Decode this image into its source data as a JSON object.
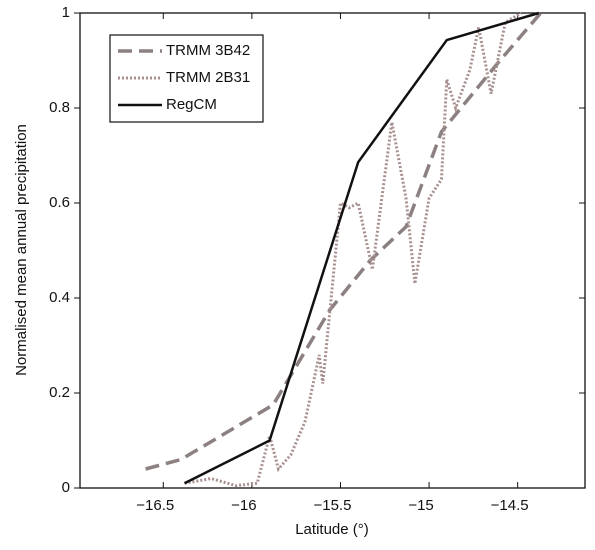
{
  "chart_data": {
    "type": "line",
    "x_label": "Latitude (°)",
    "y_label": "Normalised mean annual precipitation",
    "xlim": [
      -16.97,
      -14.12
    ],
    "ylim": [
      0,
      1
    ],
    "xticks": [
      {
        "value": -16.5,
        "label": "−16.5"
      },
      {
        "value": -16,
        "label": "−16"
      },
      {
        "value": -15.5,
        "label": "−15.5"
      },
      {
        "value": -15,
        "label": "−15"
      },
      {
        "value": -14.5,
        "label": "−14.5"
      }
    ],
    "yticks": [
      0,
      0.2,
      0.4,
      0.6,
      0.8,
      1
    ],
    "legend_position": "upper left",
    "series": [
      {
        "name": "TRMM 3B42",
        "color": "#8c8080",
        "style": "dashed",
        "x": [
          -16.6,
          -16.4,
          -15.88,
          -15.56,
          -15.33,
          -15.13,
          -14.93,
          -14.6,
          -14.37
        ],
        "values": [
          0.04,
          0.06,
          0.175,
          0.375,
          0.48,
          0.55,
          0.75,
          0.9,
          1.0
        ]
      },
      {
        "name": "TRMM 2B31",
        "color": "#a89090",
        "style": "dotted",
        "x": [
          -16.38,
          -16.23,
          -16.09,
          -15.97,
          -15.9,
          -15.85,
          -15.78,
          -15.7,
          -15.62,
          -15.6,
          -15.5,
          -15.45,
          -15.4,
          -15.32,
          -15.21,
          -15.13,
          -15.08,
          -15.0,
          -14.93,
          -14.9,
          -14.85,
          -14.77,
          -14.72,
          -14.65,
          -14.57,
          -14.48
        ],
        "values": [
          0.01,
          0.02,
          0.005,
          0.01,
          0.11,
          0.04,
          0.07,
          0.14,
          0.28,
          0.22,
          0.6,
          0.59,
          0.6,
          0.46,
          0.77,
          0.61,
          0.43,
          0.61,
          0.65,
          0.86,
          0.8,
          0.88,
          0.97,
          0.83,
          0.98,
          1.0
        ]
      },
      {
        "name": "RegCM",
        "color": "#111111",
        "style": "solid",
        "x": [
          -16.38,
          -15.9,
          -15.4,
          -14.9,
          -14.38
        ],
        "values": [
          0.01,
          0.1,
          0.686,
          0.943,
          1.0
        ]
      }
    ]
  }
}
